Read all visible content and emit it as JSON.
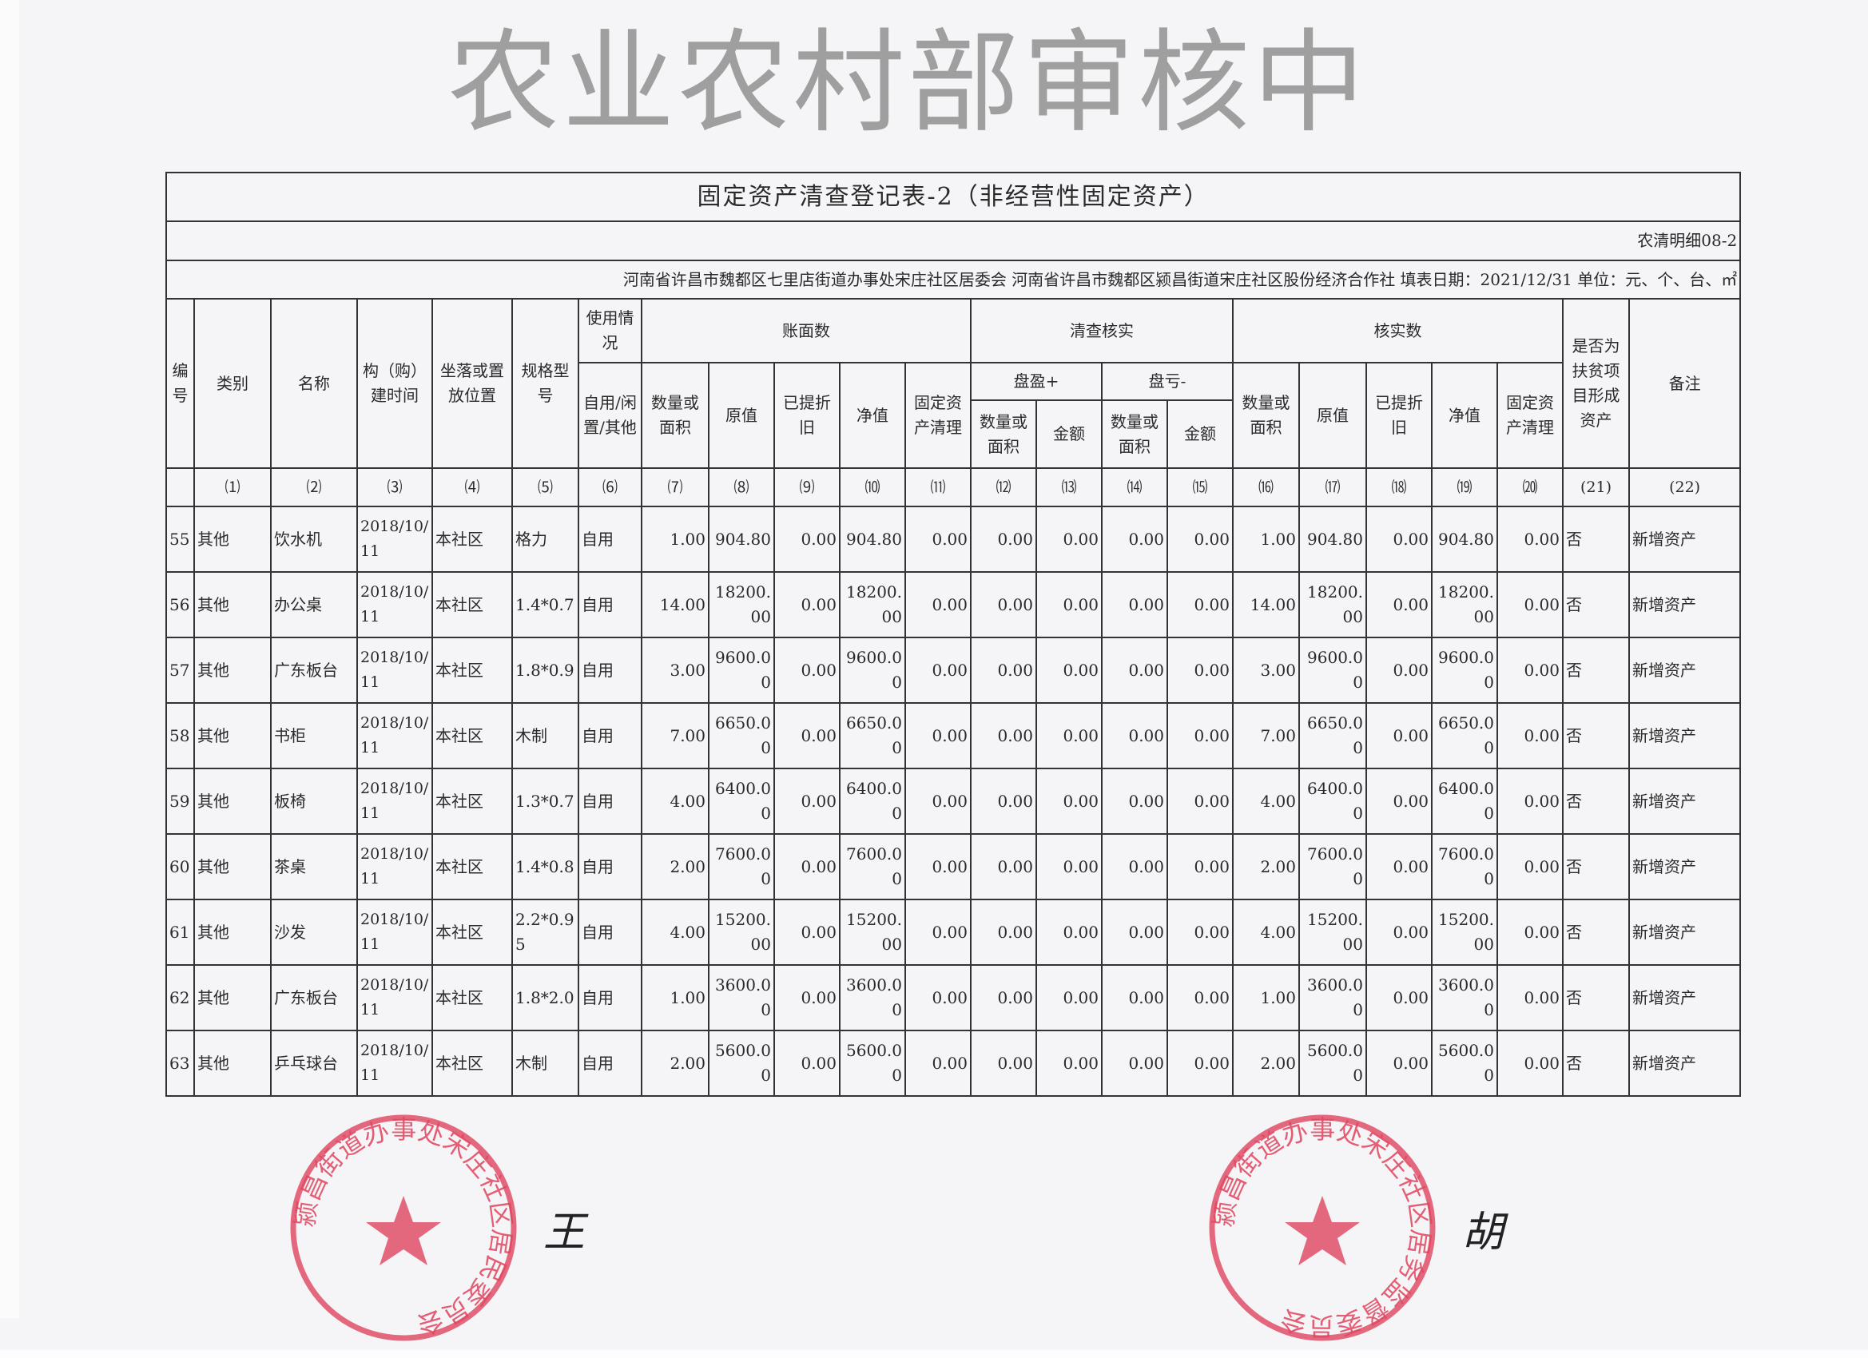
{
  "title": "固定资产清查登记表-2（非经营性固定资产）",
  "form_code": "农清明细08-2",
  "org_line": "河南省许昌市魏都区七里店街道办事处宋庄社区居委会  河南省许昌市魏都区颍昌街道宋庄社区股份经济合作社  填表日期：2021/12/31  单位：元、个、台、㎡",
  "headers": {
    "no": "编号",
    "category": "类别",
    "name": "名称",
    "build_time": "构（购）建时间",
    "location": "坐落或置放位置",
    "spec": "规格型号",
    "usage_group": "使用情况",
    "usage": "自用/闲置/其他",
    "book_group": "账面数",
    "check_group": "清查核实",
    "surplus_group": "盘盈+",
    "loss_group": "盘亏-",
    "verified_group": "核实数",
    "qty": "数量或面积",
    "orig": "原值",
    "depr": "已提折旧",
    "net": "净值",
    "cleanup": "固定资产清理",
    "amount": "金额",
    "poverty": "是否为扶贫项目形成资产",
    "remark": "备注"
  },
  "column_numbers": [
    "⑴",
    "⑵",
    "⑶",
    "⑷",
    "⑸",
    "⑹",
    "⑺",
    "⑻",
    "⑼",
    "⑽",
    "⑾",
    "⑿",
    "⒀",
    "⒁",
    "⒂",
    "⒃",
    "⒄",
    "⒅",
    "⒆",
    "⒇",
    "(21)",
    "(22)"
  ],
  "rows": [
    {
      "no": "55",
      "category": "其他",
      "name": "饮水机",
      "build_time": "2018/10/11",
      "location": "本社区",
      "spec": "格力",
      "usage": "自用",
      "qty": "1.00",
      "orig": "904.80",
      "depr": "0.00",
      "net": "904.80",
      "cleanup": "0.00",
      "s_qty": "0.00",
      "s_amt": "0.00",
      "l_qty": "0.00",
      "l_amt": "0.00",
      "v_qty": "1.00",
      "v_orig": "904.80",
      "v_depr": "0.00",
      "v_net": "904.80",
      "v_cleanup": "0.00",
      "poverty": "否",
      "remark": "新增资产"
    },
    {
      "no": "56",
      "category": "其他",
      "name": "办公桌",
      "build_time": "2018/10/11",
      "location": "本社区",
      "spec": "1.4*0.7",
      "usage": "自用",
      "qty": "14.00",
      "orig": "18200.00",
      "depr": "0.00",
      "net": "18200.00",
      "cleanup": "0.00",
      "s_qty": "0.00",
      "s_amt": "0.00",
      "l_qty": "0.00",
      "l_amt": "0.00",
      "v_qty": "14.00",
      "v_orig": "18200.00",
      "v_depr": "0.00",
      "v_net": "18200.00",
      "v_cleanup": "0.00",
      "poverty": "否",
      "remark": "新增资产"
    },
    {
      "no": "57",
      "category": "其他",
      "name": "广东板台",
      "build_time": "2018/10/11",
      "location": "本社区",
      "spec": "1.8*0.9",
      "usage": "自用",
      "qty": "3.00",
      "orig": "9600.00",
      "depr": "0.00",
      "net": "9600.00",
      "cleanup": "0.00",
      "s_qty": "0.00",
      "s_amt": "0.00",
      "l_qty": "0.00",
      "l_amt": "0.00",
      "v_qty": "3.00",
      "v_orig": "9600.00",
      "v_depr": "0.00",
      "v_net": "9600.00",
      "v_cleanup": "0.00",
      "poverty": "否",
      "remark": "新增资产"
    },
    {
      "no": "58",
      "category": "其他",
      "name": "书柜",
      "build_time": "2018/10/11",
      "location": "本社区",
      "spec": "木制",
      "usage": "自用",
      "qty": "7.00",
      "orig": "6650.00",
      "depr": "0.00",
      "net": "6650.00",
      "cleanup": "0.00",
      "s_qty": "0.00",
      "s_amt": "0.00",
      "l_qty": "0.00",
      "l_amt": "0.00",
      "v_qty": "7.00",
      "v_orig": "6650.00",
      "v_depr": "0.00",
      "v_net": "6650.00",
      "v_cleanup": "0.00",
      "poverty": "否",
      "remark": "新增资产"
    },
    {
      "no": "59",
      "category": "其他",
      "name": "板椅",
      "build_time": "2018/10/11",
      "location": "本社区",
      "spec": "1.3*0.7",
      "usage": "自用",
      "qty": "4.00",
      "orig": "6400.00",
      "depr": "0.00",
      "net": "6400.00",
      "cleanup": "0.00",
      "s_qty": "0.00",
      "s_amt": "0.00",
      "l_qty": "0.00",
      "l_amt": "0.00",
      "v_qty": "4.00",
      "v_orig": "6400.00",
      "v_depr": "0.00",
      "v_net": "6400.00",
      "v_cleanup": "0.00",
      "poverty": "否",
      "remark": "新增资产"
    },
    {
      "no": "60",
      "category": "其他",
      "name": "茶桌",
      "build_time": "2018/10/11",
      "location": "本社区",
      "spec": "1.4*0.8",
      "usage": "自用",
      "qty": "2.00",
      "orig": "7600.00",
      "depr": "0.00",
      "net": "7600.00",
      "cleanup": "0.00",
      "s_qty": "0.00",
      "s_amt": "0.00",
      "l_qty": "0.00",
      "l_amt": "0.00",
      "v_qty": "2.00",
      "v_orig": "7600.00",
      "v_depr": "0.00",
      "v_net": "7600.00",
      "v_cleanup": "0.00",
      "poverty": "否",
      "remark": "新增资产"
    },
    {
      "no": "61",
      "category": "其他",
      "name": "沙发",
      "build_time": "2018/10/11",
      "location": "本社区",
      "spec": "2.2*0.95",
      "usage": "自用",
      "qty": "4.00",
      "orig": "15200.00",
      "depr": "0.00",
      "net": "15200.00",
      "cleanup": "0.00",
      "s_qty": "0.00",
      "s_amt": "0.00",
      "l_qty": "0.00",
      "l_amt": "0.00",
      "v_qty": "4.00",
      "v_orig": "15200.00",
      "v_depr": "0.00",
      "v_net": "15200.00",
      "v_cleanup": "0.00",
      "poverty": "否",
      "remark": "新增资产"
    },
    {
      "no": "62",
      "category": "其他",
      "name": "广东板台",
      "build_time": "2018/10/11",
      "location": "本社区",
      "spec": "1.8*2.0",
      "usage": "自用",
      "qty": "1.00",
      "orig": "3600.00",
      "depr": "0.00",
      "net": "3600.00",
      "cleanup": "0.00",
      "s_qty": "0.00",
      "s_amt": "0.00",
      "l_qty": "0.00",
      "l_amt": "0.00",
      "v_qty": "1.00",
      "v_orig": "3600.00",
      "v_depr": "0.00",
      "v_net": "3600.00",
      "v_cleanup": "0.00",
      "poverty": "否",
      "remark": "新增资产"
    },
    {
      "no": "63",
      "category": "其他",
      "name": "乒乓球台",
      "build_time": "2018/10/11",
      "location": "本社区",
      "spec": "木制",
      "usage": "自用",
      "qty": "2.00",
      "orig": "5600.00",
      "depr": "0.00",
      "net": "5600.00",
      "cleanup": "0.00",
      "s_qty": "0.00",
      "s_amt": "0.00",
      "l_qty": "0.00",
      "l_amt": "0.00",
      "v_qty": "2.00",
      "v_orig": "5600.00",
      "v_depr": "0.00",
      "v_net": "5600.00",
      "v_cleanup": "0.00",
      "poverty": "否",
      "remark": "新增资产"
    }
  ],
  "watermark": "农业农村部审核中",
  "stamps": {
    "left": "颍昌街道办事处宋庄社区居民委员会",
    "right": "颍昌街道办事处宋庄社区居务监督委员会",
    "color": "#e0455e"
  }
}
